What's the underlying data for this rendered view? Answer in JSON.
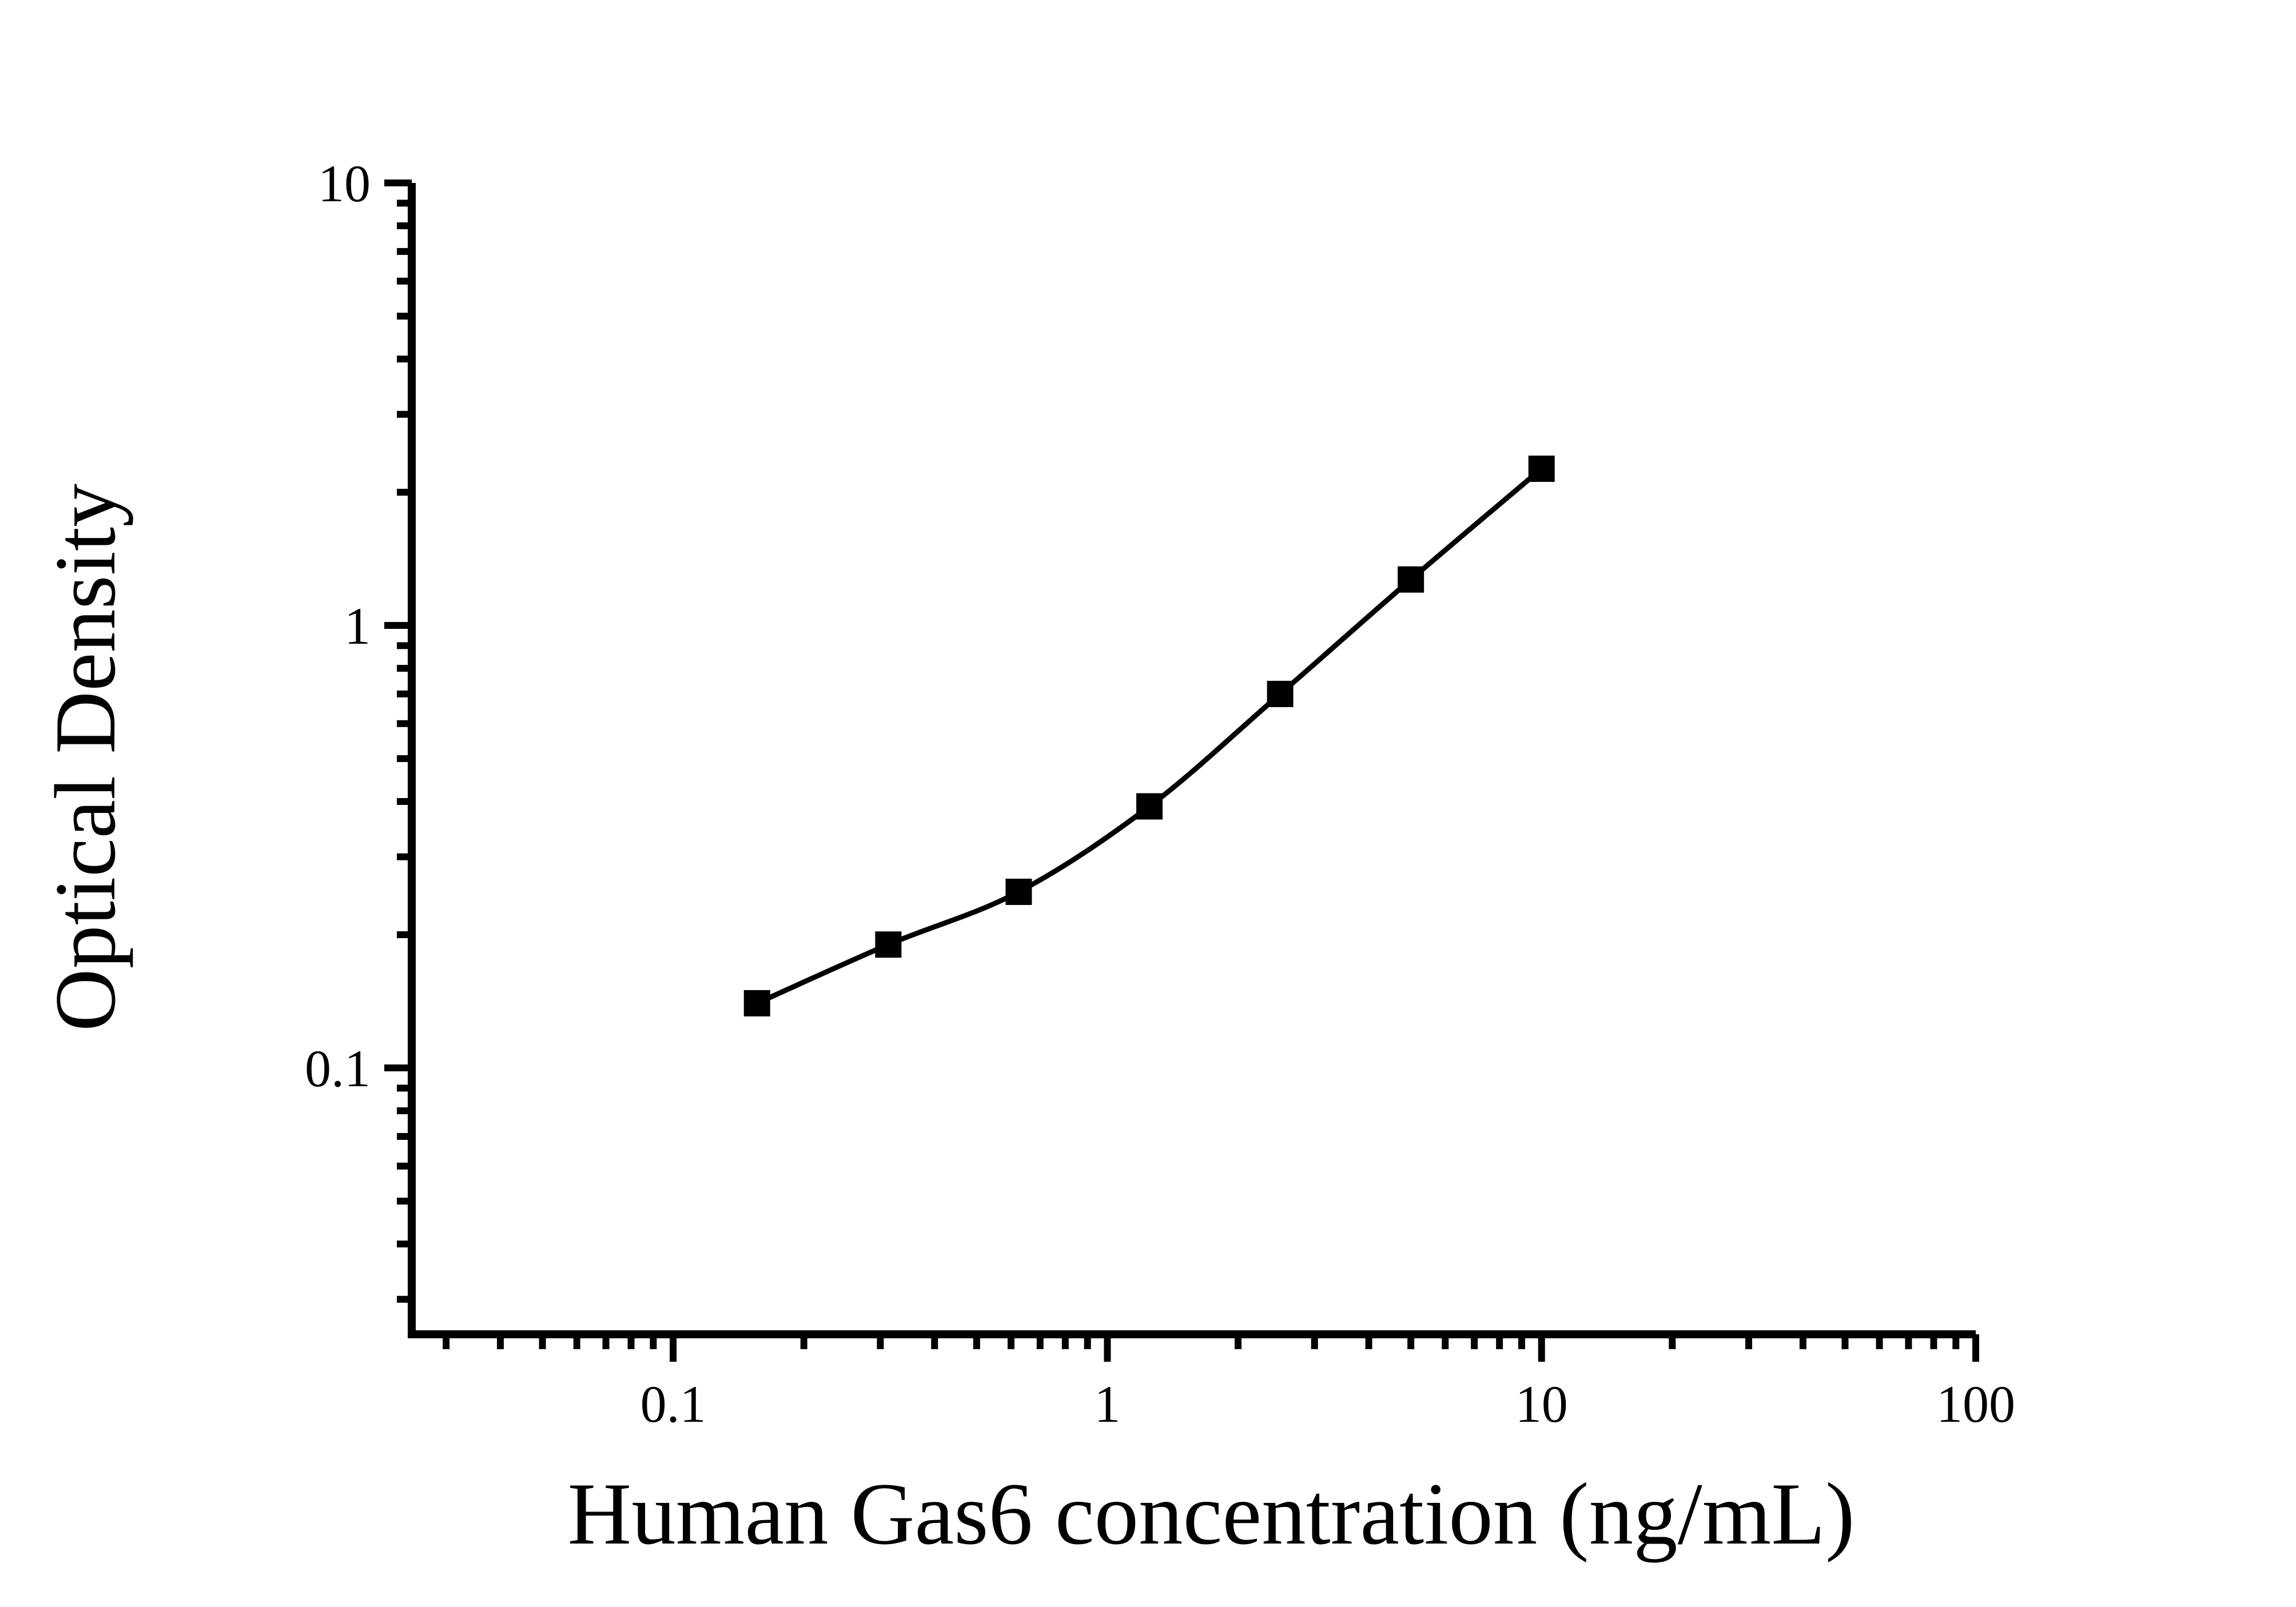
{
  "figure": {
    "background": "#ffffff"
  },
  "chart_data": {
    "type": "scatter",
    "subtype": "elisa-standard-curve",
    "title": "",
    "xlabel": "Human Gas6 concentration (ng/mL)",
    "ylabel": "Optical Density",
    "x_scale": "log",
    "y_scale": "log",
    "xlim": [
      0.025,
      100
    ],
    "ylim": [
      0.025,
      10
    ],
    "grid": false,
    "legend": false,
    "marker": "filled-square",
    "line_style": "smooth",
    "series": [
      {
        "name": "standard-curve",
        "x": [
          0.156,
          0.313,
          0.625,
          1.25,
          2.5,
          5,
          10
        ],
        "y": [
          0.14,
          0.19,
          0.25,
          0.39,
          0.7,
          1.27,
          2.26
        ]
      }
    ],
    "x_tick_values": [
      0.1,
      1,
      10,
      100
    ],
    "x_tick_labels": [
      "0.1",
      "1",
      "10",
      "100"
    ],
    "y_tick_values": [
      0.1,
      1,
      10
    ],
    "y_tick_labels": [
      "0.1",
      "1",
      "10"
    ],
    "colors": {
      "axis": "#000000",
      "line": "#000000",
      "marker": "#000000",
      "text": "#000000",
      "background": "#ffffff"
    }
  }
}
